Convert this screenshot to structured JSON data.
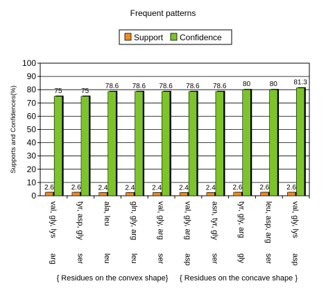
{
  "chart_data": {
    "type": "bar",
    "title": "Frequent patterns",
    "ylabel": "Supports and Confidences(%)",
    "xlabel": "",
    "ylim": [
      0,
      100
    ],
    "yticks": [
      0,
      10,
      20,
      30,
      40,
      50,
      60,
      70,
      80,
      90,
      100
    ],
    "grid": true,
    "legend_position": "top",
    "categories": [
      [
        "val, gly, lys",
        "arg"
      ],
      [
        "tyr, asp, gly",
        "ser"
      ],
      [
        "ala, leu",
        "leu"
      ],
      [
        "gln, gly, arg",
        "leu"
      ],
      [
        "val, gly, arg",
        "ser"
      ],
      [
        "val, gly, arg",
        "asp"
      ],
      [
        "asn, tyr, gly",
        "ser"
      ],
      [
        "tyr, gly, arg",
        "gly"
      ],
      [
        "leu, asp, arg",
        "ser"
      ],
      [
        "val, gly, lys",
        "asp"
      ]
    ],
    "series": [
      {
        "name": "Support",
        "color": "#f08c1e",
        "values": [
          2.6,
          2.6,
          2.4,
          2.4,
          2.4,
          2.4,
          2.4,
          2.6,
          2.6,
          2.6
        ]
      },
      {
        "name": "Confidence",
        "color": "#7cc42a",
        "values": [
          75,
          75,
          78.6,
          78.6,
          78.6,
          78.6,
          78.6,
          80,
          80,
          81.3
        ]
      }
    ],
    "group_labels": [
      "{ Residues on the convex shape}",
      "{ Residues on the concave shape }"
    ]
  }
}
